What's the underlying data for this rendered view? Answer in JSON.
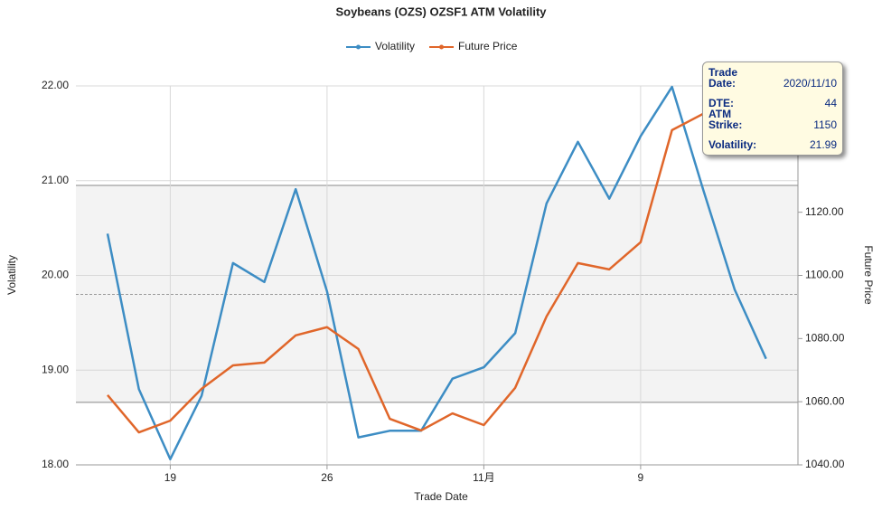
{
  "chart_data": {
    "type": "line",
    "title": "Soybeans (OZS) OZSF1 ATM Volatility",
    "xlabel": "Trade Date",
    "ylabel": "Volatility",
    "y2label": "Future Price",
    "categories": [
      null,
      null,
      "19",
      null,
      null,
      null,
      null,
      "26",
      null,
      null,
      null,
      null,
      "11月",
      null,
      null,
      null,
      null,
      "9",
      null,
      null,
      null,
      null
    ],
    "series": [
      {
        "name": "Volatility",
        "color": "#3d8dc4",
        "values": [
          20.44,
          18.8,
          18.06,
          18.73,
          20.13,
          19.93,
          20.91,
          19.83,
          18.29,
          18.36,
          18.36,
          18.91,
          19.03,
          19.39,
          20.76,
          21.41,
          20.81,
          21.47,
          21.99,
          20.9,
          19.85,
          19.12
        ]
      },
      {
        "name": "Future Price",
        "color": "#e0662a",
        "axis": "y2",
        "values": [
          1062.1,
          1050.3,
          1054.0,
          1064.1,
          1071.5,
          1072.4,
          1081.0,
          1083.6,
          1076.7,
          1054.6,
          1050.9,
          1056.3,
          1052.6,
          1064.4,
          1087.0,
          1103.9,
          1101.9,
          1110.5,
          1146.0,
          1151.2,
          null,
          null
        ]
      }
    ],
    "ylim": [
      18,
      22
    ],
    "yticks": [
      {
        "value": 18,
        "label": "18.00"
      },
      {
        "value": 19,
        "label": "19.00"
      },
      {
        "value": 20,
        "label": "20.00"
      },
      {
        "value": 21,
        "label": "21.00"
      },
      {
        "value": 22,
        "label": "22.00"
      }
    ],
    "y2lim": [
      1040,
      1160
    ],
    "y2ticks": [
      {
        "value": 1040,
        "label": "1040.00"
      },
      {
        "value": 1060,
        "label": "1060.00"
      },
      {
        "value": 1080,
        "label": "1080.00"
      },
      {
        "value": 1100,
        "label": "1100.00"
      },
      {
        "value": 1120,
        "label": "1120.00"
      }
    ],
    "plot_band": [
      18.66,
      20.95
    ],
    "mean_line": 19.8,
    "grid": true,
    "legend": "top",
    "tooltip": [
      {
        "label": "Trade Date:",
        "value": "2020/11/10"
      },
      {
        "label": "DTE:",
        "value": 44
      },
      {
        "label": "ATM Strike:",
        "value": 1150
      },
      {
        "label": "Volatility:",
        "value": 21.99
      }
    ]
  }
}
